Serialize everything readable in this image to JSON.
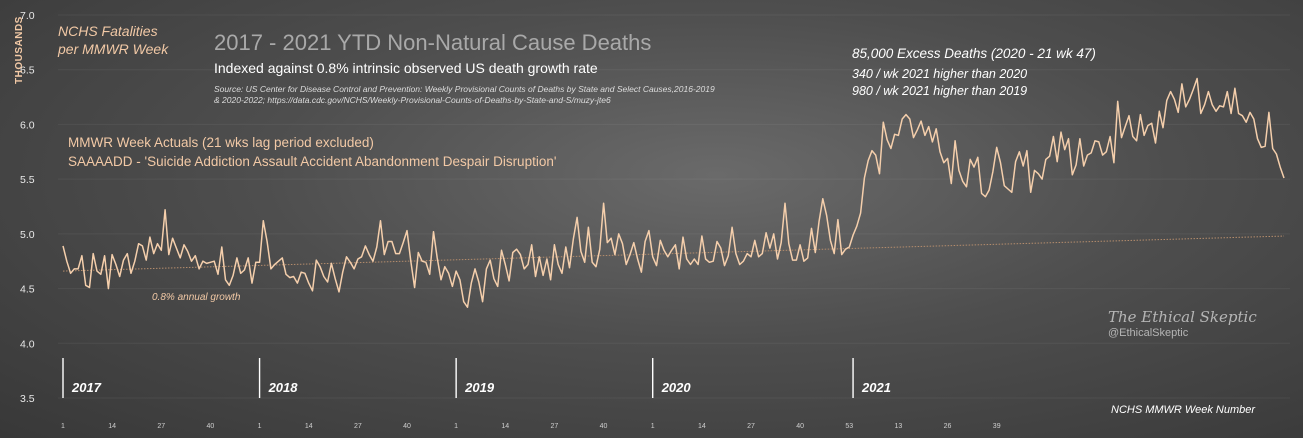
{
  "header": {
    "y_axis_label": "THOUSANDS",
    "series_label_line1": "NCHS Fatalities",
    "series_label_line2": "per MMWR Week",
    "title": "2017 - 2021 YTD Non-Natural Cause Deaths",
    "subtitle": "Indexed against 0.8% intrinsic observed US death growth rate",
    "source_line1": "Source: US Center for Disease Control and Prevention: Weekly Provisional Counts of Deaths by State and Select Causes,2016-2019",
    "source_line2": "& 2020-2022; https://data.cdc.gov/NCHS/Weekly-Provisional-Counts-of-Deaths-by-State-and-S/muzy-jte6"
  },
  "annotations": {
    "actuals": "MMWR Week Actuals (21 wks lag period excluded)",
    "saaaadd": "SAAAADD - 'Suicide Addiction Assault Accident Abandonment Despair Disruption'",
    "excess_total": "85,000  Excess Deaths (2020 - 21 wk 47)",
    "excess_vs_2020": "340  / wk  2021 higher than 2020",
    "excess_vs_2019": "980  / wk  2021 higher than 2019",
    "growth": "0.8% annual growth"
  },
  "branding": {
    "name": "The Ethical Skeptic",
    "handle": "@EthicalSkeptic"
  },
  "x_axis_title": "NCHS MMWR Week Number",
  "chart_data": {
    "type": "line",
    "y_ticks": [
      "7.0",
      "6.5",
      "6.0",
      "5.5",
      "5.0",
      "4.5",
      "4.0",
      "3.5"
    ],
    "ylim": [
      3.5,
      7.0
    ],
    "years": [
      {
        "label": "2017",
        "start_index": 0
      },
      {
        "label": "2018",
        "start_index": 52
      },
      {
        "label": "2019",
        "start_index": 104
      },
      {
        "label": "2020",
        "start_index": 156
      },
      {
        "label": "2021",
        "start_index": 209
      }
    ],
    "week_ticks": [
      {
        "index": 0,
        "label": "1"
      },
      {
        "index": 13,
        "label": "14"
      },
      {
        "index": 26,
        "label": "27"
      },
      {
        "index": 39,
        "label": "40"
      },
      {
        "index": 52,
        "label": "1"
      },
      {
        "index": 65,
        "label": "14"
      },
      {
        "index": 78,
        "label": "27"
      },
      {
        "index": 91,
        "label": "40"
      },
      {
        "index": 104,
        "label": "1"
      },
      {
        "index": 117,
        "label": "14"
      },
      {
        "index": 130,
        "label": "27"
      },
      {
        "index": 143,
        "label": "40"
      },
      {
        "index": 156,
        "label": "1"
      },
      {
        "index": 169,
        "label": "14"
      },
      {
        "index": 182,
        "label": "27"
      },
      {
        "index": 195,
        "label": "40"
      },
      {
        "index": 208,
        "label": "53"
      },
      {
        "index": 221,
        "label": "13"
      },
      {
        "index": 234,
        "label": "26"
      },
      {
        "index": 247,
        "label": "39"
      }
    ],
    "baseline": {
      "name": "0.8% annual growth",
      "start": 4.66,
      "end": 4.98
    },
    "colors": {
      "line": "#f5cfac",
      "baseline": "#b48c6c",
      "year_marker": "#ffffff"
    },
    "series": [
      {
        "values": [
          4.89,
          4.75,
          4.64,
          4.68,
          4.68,
          4.8,
          4.53,
          4.51,
          4.82,
          4.66,
          4.63,
          4.8,
          4.5,
          4.81,
          4.72,
          4.61,
          4.76,
          4.82,
          4.64,
          4.75,
          4.91,
          4.89,
          4.76,
          4.97,
          4.82,
          4.91,
          4.85,
          5.22,
          4.81,
          4.96,
          4.87,
          4.78,
          4.9,
          4.84,
          4.75,
          4.8,
          4.68,
          4.75,
          4.73,
          4.74,
          4.75,
          4.63,
          4.88,
          4.58,
          4.53,
          4.62,
          4.78,
          4.64,
          4.67,
          4.78,
          4.55,
          4.74,
          4.74,
          5.12,
          4.93,
          4.68,
          4.72,
          4.75,
          4.78,
          4.63,
          4.6,
          4.61,
          4.55,
          4.65,
          4.64,
          4.55,
          4.48,
          4.76,
          4.7,
          4.61,
          4.56,
          4.73,
          4.59,
          4.47,
          4.65,
          4.79,
          4.74,
          4.68,
          4.77,
          4.79,
          4.89,
          4.81,
          4.75,
          4.88,
          5.12,
          4.81,
          4.93,
          4.93,
          4.82,
          4.82,
          4.92,
          5.03,
          4.75,
          4.51,
          4.83,
          4.75,
          4.74,
          4.63,
          5.02,
          4.78,
          4.58,
          4.7,
          4.64,
          4.52,
          4.66,
          4.58,
          4.38,
          4.33,
          4.55,
          4.68,
          4.56,
          4.38,
          4.68,
          4.76,
          4.59,
          4.52,
          4.85,
          4.72,
          4.57,
          4.83,
          4.86,
          4.81,
          4.68,
          4.72,
          4.9,
          4.61,
          4.79,
          4.62,
          4.77,
          4.58,
          4.9,
          4.72,
          4.64,
          4.88,
          4.69,
          4.95,
          5.15,
          4.84,
          4.74,
          5.06,
          4.74,
          4.7,
          4.86,
          5.28,
          4.92,
          4.96,
          4.81,
          5.0,
          4.91,
          4.72,
          4.81,
          4.92,
          4.77,
          4.65,
          4.93,
          5.03,
          4.79,
          4.71,
          4.94,
          4.85,
          4.79,
          4.85,
          4.9,
          4.68,
          4.97,
          4.77,
          4.72,
          4.77,
          4.72,
          4.98,
          4.77,
          4.74,
          4.75,
          4.93,
          4.87,
          4.71,
          4.8,
          5.06,
          4.82,
          4.72,
          4.75,
          4.82,
          4.79,
          4.94,
          4.79,
          4.82,
          5.01,
          4.87,
          5.0,
          4.77,
          4.92,
          5.28,
          4.91,
          4.76,
          4.76,
          4.9,
          4.75,
          4.78,
          5.05,
          4.83,
          5.11,
          5.32,
          5.17,
          4.94,
          4.82,
          5.13,
          4.81,
          4.86,
          4.88,
          4.99,
          5.07,
          5.19,
          5.51,
          5.67,
          5.76,
          5.72,
          5.55,
          6.02,
          5.86,
          5.78,
          5.91,
          5.9,
          6.05,
          6.09,
          6.05,
          5.88,
          5.95,
          6.03,
          5.9,
          5.98,
          5.84,
          5.96,
          5.75,
          5.65,
          5.69,
          5.46,
          5.85,
          5.58,
          5.48,
          5.43,
          5.68,
          5.61,
          5.7,
          5.37,
          5.34,
          5.4,
          5.57,
          5.79,
          5.65,
          5.44,
          5.41,
          5.38,
          5.66,
          5.75,
          5.62,
          5.76,
          5.38,
          5.58,
          5.55,
          5.5,
          5.68,
          5.71,
          5.89,
          5.66,
          5.93,
          5.77,
          5.87,
          5.54,
          5.63,
          5.87,
          5.62,
          5.72,
          5.74,
          5.85,
          5.84,
          5.72,
          5.75,
          5.89,
          5.65,
          6.21,
          5.88,
          5.98,
          6.08,
          5.89,
          5.85,
          6.09,
          5.9,
          5.99,
          6.01,
          5.83,
          6.12,
          5.97,
          6.22,
          6.3,
          6.23,
          6.11,
          6.37,
          6.16,
          6.23,
          6.32,
          6.42,
          6.1,
          6.18,
          6.3,
          6.18,
          6.12,
          6.17,
          6.16,
          6.3,
          6.1,
          6.33,
          6.1,
          6.08,
          6.02,
          6.11,
          6.05,
          5.87,
          5.79,
          5.8,
          6.11,
          5.78,
          5.73,
          5.61,
          5.51
        ]
      }
    ]
  }
}
